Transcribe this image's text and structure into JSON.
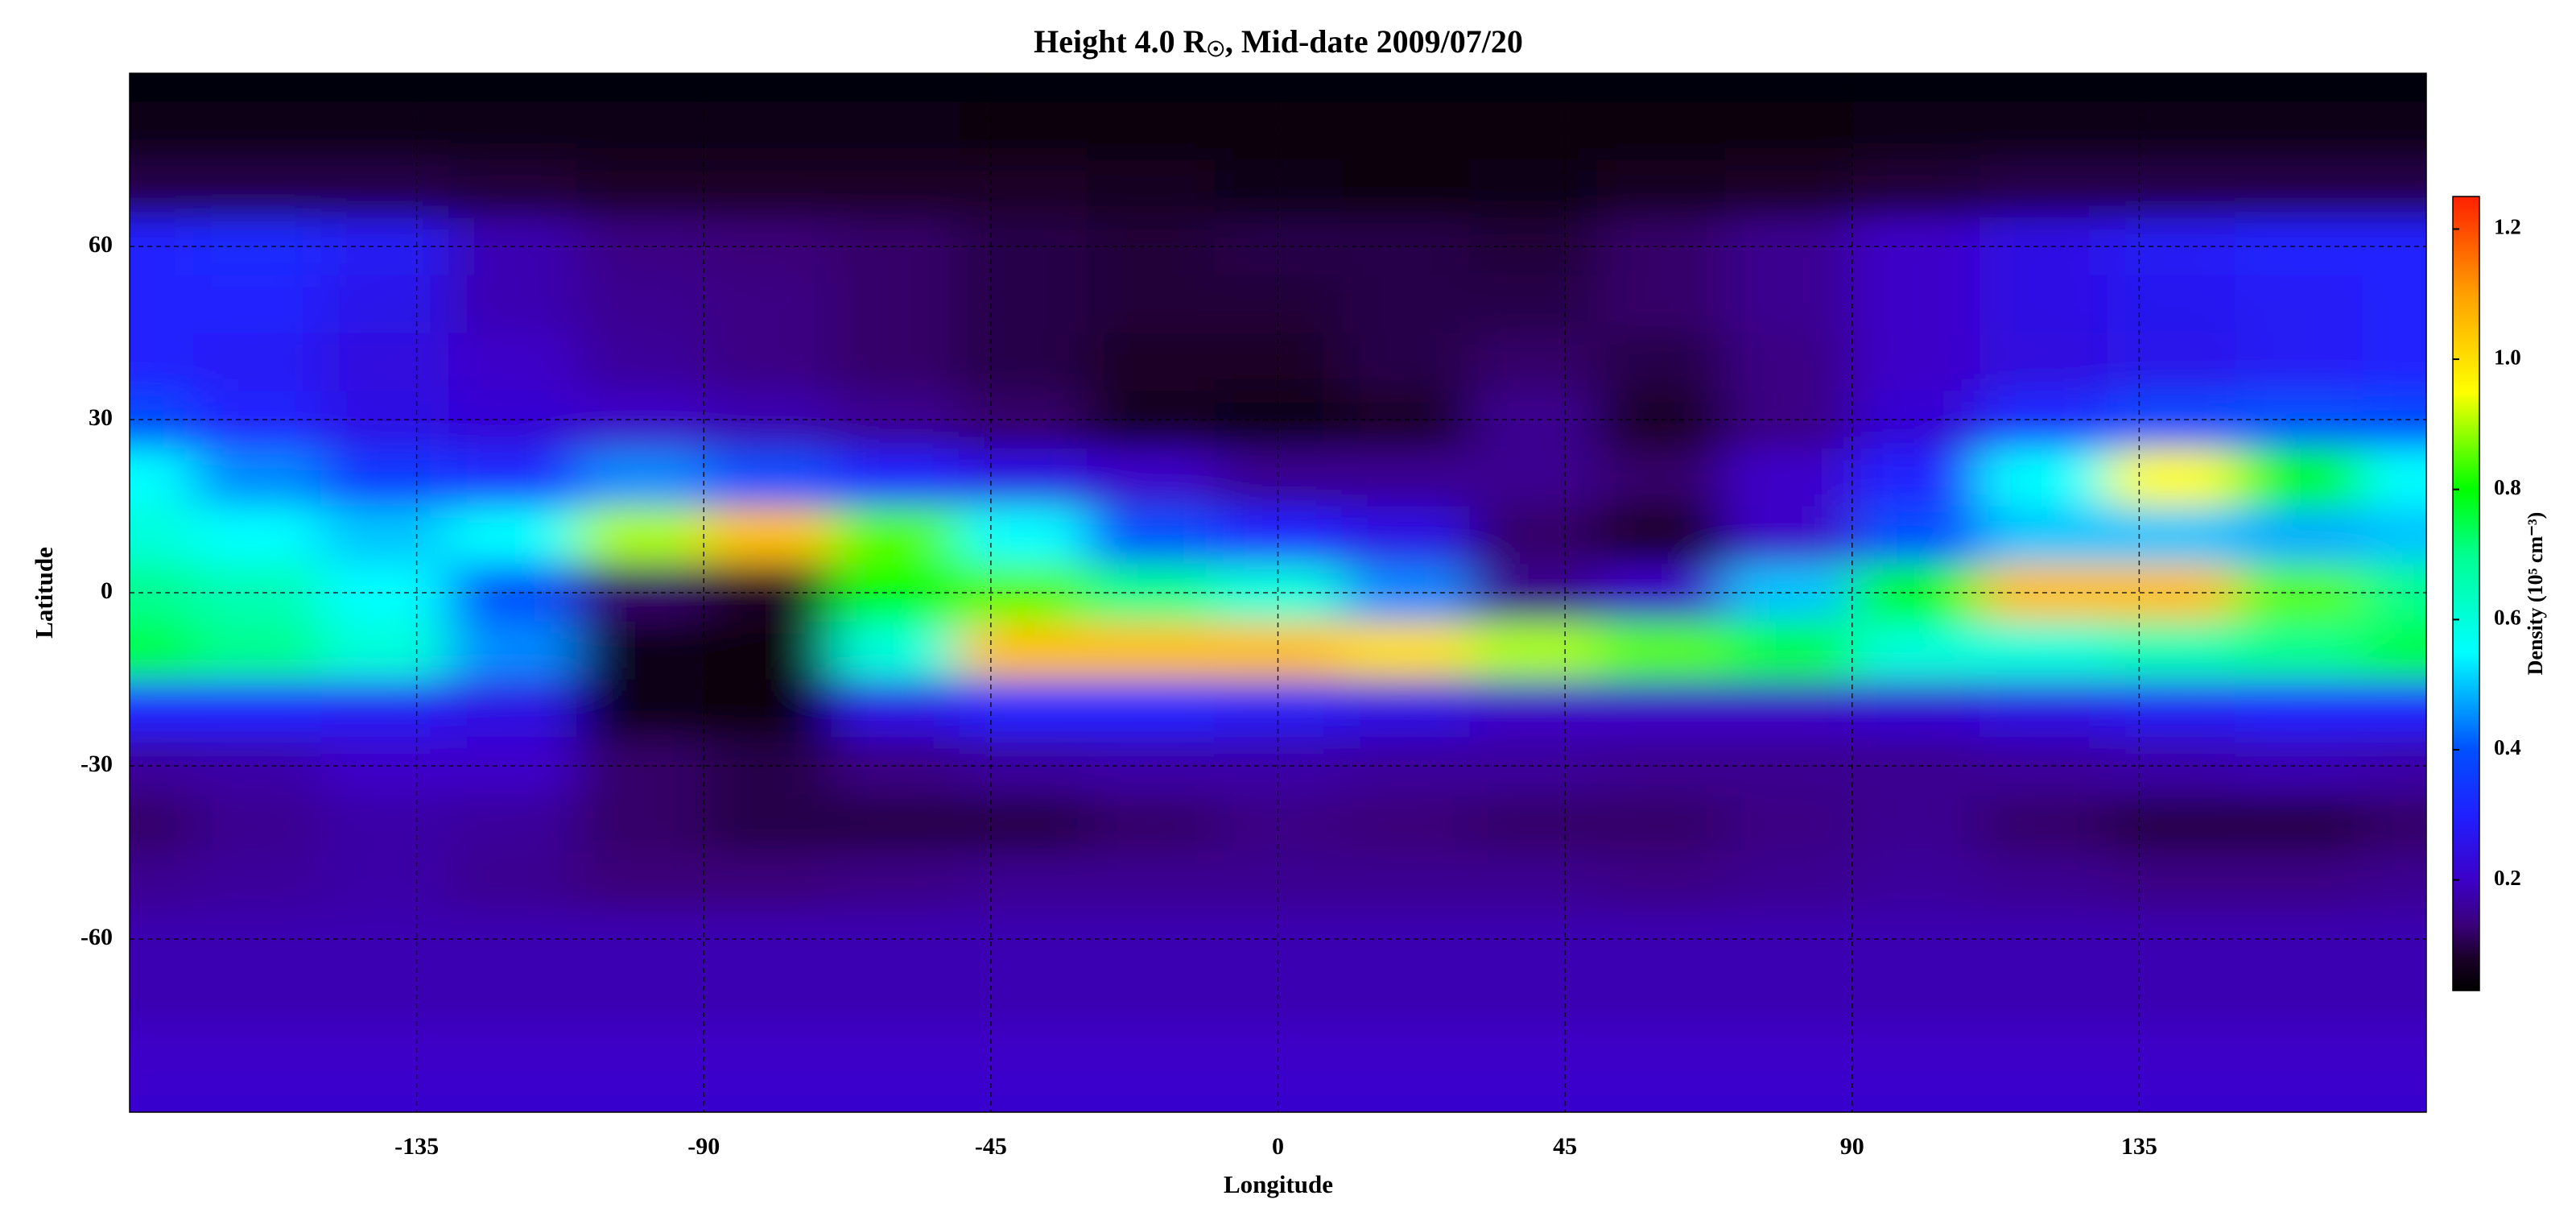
{
  "chart_data": {
    "type": "heatmap",
    "title": "Height 4.0 R",
    "title_subscript": "☉",
    "title_rest": ", Mid-date 2009/07/20",
    "x_label": "Longitude",
    "y_label": "Latitude",
    "colorbar_label": "Density (10⁵ cm⁻³)",
    "xlim": [
      -180,
      180
    ],
    "ylim": [
      -90,
      90
    ],
    "xticks": [
      -135,
      -90,
      -45,
      0,
      45,
      90,
      135
    ],
    "yticks": [
      -60,
      -30,
      0,
      30,
      60
    ],
    "grid": true,
    "zlim": [
      0.03,
      1.25
    ],
    "zticks": [
      0.2,
      0.4,
      0.6,
      0.8,
      {
        "value": 1,
        "label": "1.0"
      },
      1.2
    ],
    "colorscale": [
      [
        0.03,
        "#000000"
      ],
      [
        0.08,
        "#1a0028"
      ],
      [
        0.13,
        "#3a0078"
      ],
      [
        0.2,
        "#3c00c8"
      ],
      [
        0.3,
        "#2020ff"
      ],
      [
        0.4,
        "#0050ff"
      ],
      [
        0.55,
        "#00ffff"
      ],
      [
        0.7,
        "#00ff90"
      ],
      [
        0.8,
        "#00ff00"
      ],
      [
        0.95,
        "#ffff00"
      ],
      [
        1.1,
        "#ffa000"
      ],
      [
        1.25,
        "#ff2000"
      ]
    ],
    "x": [
      -180,
      -160,
      -140,
      -120,
      -100,
      -80,
      -60,
      -40,
      -20,
      0,
      20,
      40,
      60,
      80,
      100,
      120,
      140,
      160,
      180
    ],
    "y": [
      90,
      80,
      70,
      60,
      50,
      40,
      30,
      20,
      10,
      0,
      -10,
      -20,
      -30,
      -40,
      -50,
      -60,
      -70,
      -80,
      -90
    ],
    "z": [
      [
        0.04,
        0.04,
        0.04,
        0.04,
        0.04,
        0.04,
        0.04,
        0.04,
        0.04,
        0.04,
        0.04,
        0.04,
        0.04,
        0.04,
        0.04,
        0.04,
        0.04,
        0.04,
        0.04
      ],
      [
        0.06,
        0.06,
        0.06,
        0.06,
        0.06,
        0.06,
        0.06,
        0.05,
        0.05,
        0.05,
        0.05,
        0.05,
        0.05,
        0.05,
        0.06,
        0.06,
        0.06,
        0.06,
        0.06
      ],
      [
        0.1,
        0.1,
        0.1,
        0.09,
        0.08,
        0.08,
        0.08,
        0.08,
        0.07,
        0.06,
        0.05,
        0.06,
        0.07,
        0.08,
        0.09,
        0.1,
        0.1,
        0.1,
        0.1
      ],
      [
        0.3,
        0.32,
        0.28,
        0.18,
        0.14,
        0.13,
        0.12,
        0.1,
        0.09,
        0.1,
        0.1,
        0.09,
        0.12,
        0.15,
        0.2,
        0.25,
        0.28,
        0.3,
        0.3
      ],
      [
        0.3,
        0.3,
        0.26,
        0.18,
        0.15,
        0.14,
        0.12,
        0.1,
        0.09,
        0.09,
        0.1,
        0.1,
        0.12,
        0.15,
        0.2,
        0.25,
        0.27,
        0.28,
        0.3
      ],
      [
        0.3,
        0.28,
        0.24,
        0.2,
        0.16,
        0.14,
        0.12,
        0.1,
        0.08,
        0.08,
        0.1,
        0.12,
        0.1,
        0.14,
        0.2,
        0.24,
        0.26,
        0.28,
        0.3
      ],
      [
        0.38,
        0.3,
        0.25,
        0.22,
        0.2,
        0.18,
        0.15,
        0.12,
        0.07,
        0.06,
        0.08,
        0.15,
        0.08,
        0.14,
        0.22,
        0.32,
        0.38,
        0.4,
        0.38
      ],
      [
        0.55,
        0.45,
        0.35,
        0.32,
        0.45,
        0.4,
        0.3,
        0.25,
        0.2,
        0.15,
        0.15,
        0.15,
        0.12,
        0.2,
        0.3,
        0.55,
        0.95,
        0.8,
        0.55
      ],
      [
        0.6,
        0.55,
        0.5,
        0.55,
        0.9,
        1.05,
        0.85,
        0.55,
        0.4,
        0.3,
        0.25,
        0.12,
        0.08,
        0.2,
        0.4,
        0.5,
        0.5,
        0.48,
        0.5
      ],
      [
        0.7,
        0.65,
        0.55,
        0.4,
        0.12,
        0.08,
        0.8,
        0.85,
        0.7,
        0.6,
        0.45,
        0.15,
        0.2,
        0.5,
        0.8,
        1.05,
        1.05,
        0.85,
        0.7
      ],
      [
        0.75,
        0.7,
        0.6,
        0.45,
        0.06,
        0.05,
        0.6,
        1.05,
        1.05,
        1.05,
        1.0,
        0.9,
        0.85,
        0.75,
        0.6,
        0.6,
        0.65,
        0.7,
        0.75
      ],
      [
        0.3,
        0.3,
        0.28,
        0.25,
        0.06,
        0.05,
        0.25,
        0.3,
        0.3,
        0.28,
        0.25,
        0.2,
        0.2,
        0.2,
        0.22,
        0.25,
        0.28,
        0.3,
        0.3
      ],
      [
        0.16,
        0.17,
        0.2,
        0.2,
        0.12,
        0.1,
        0.14,
        0.16,
        0.17,
        0.17,
        0.16,
        0.16,
        0.15,
        0.15,
        0.15,
        0.16,
        0.17,
        0.18,
        0.17
      ],
      [
        0.12,
        0.15,
        0.17,
        0.16,
        0.12,
        0.1,
        0.1,
        0.1,
        0.12,
        0.14,
        0.13,
        0.12,
        0.12,
        0.14,
        0.15,
        0.12,
        0.1,
        0.1,
        0.12
      ],
      [
        0.15,
        0.16,
        0.17,
        0.15,
        0.13,
        0.13,
        0.14,
        0.15,
        0.15,
        0.15,
        0.15,
        0.15,
        0.14,
        0.15,
        0.16,
        0.15,
        0.14,
        0.14,
        0.15
      ],
      [
        0.18,
        0.18,
        0.18,
        0.18,
        0.18,
        0.18,
        0.18,
        0.18,
        0.18,
        0.18,
        0.18,
        0.18,
        0.18,
        0.18,
        0.18,
        0.18,
        0.18,
        0.18,
        0.18
      ],
      [
        0.18,
        0.18,
        0.18,
        0.18,
        0.18,
        0.18,
        0.18,
        0.18,
        0.18,
        0.18,
        0.18,
        0.18,
        0.18,
        0.18,
        0.18,
        0.18,
        0.18,
        0.18,
        0.18
      ],
      [
        0.2,
        0.2,
        0.2,
        0.2,
        0.2,
        0.2,
        0.2,
        0.2,
        0.2,
        0.2,
        0.2,
        0.2,
        0.2,
        0.2,
        0.2,
        0.2,
        0.2,
        0.2,
        0.2
      ],
      [
        0.21,
        0.21,
        0.21,
        0.21,
        0.21,
        0.21,
        0.21,
        0.21,
        0.21,
        0.21,
        0.21,
        0.21,
        0.21,
        0.21,
        0.21,
        0.21,
        0.21,
        0.21,
        0.21
      ]
    ]
  }
}
